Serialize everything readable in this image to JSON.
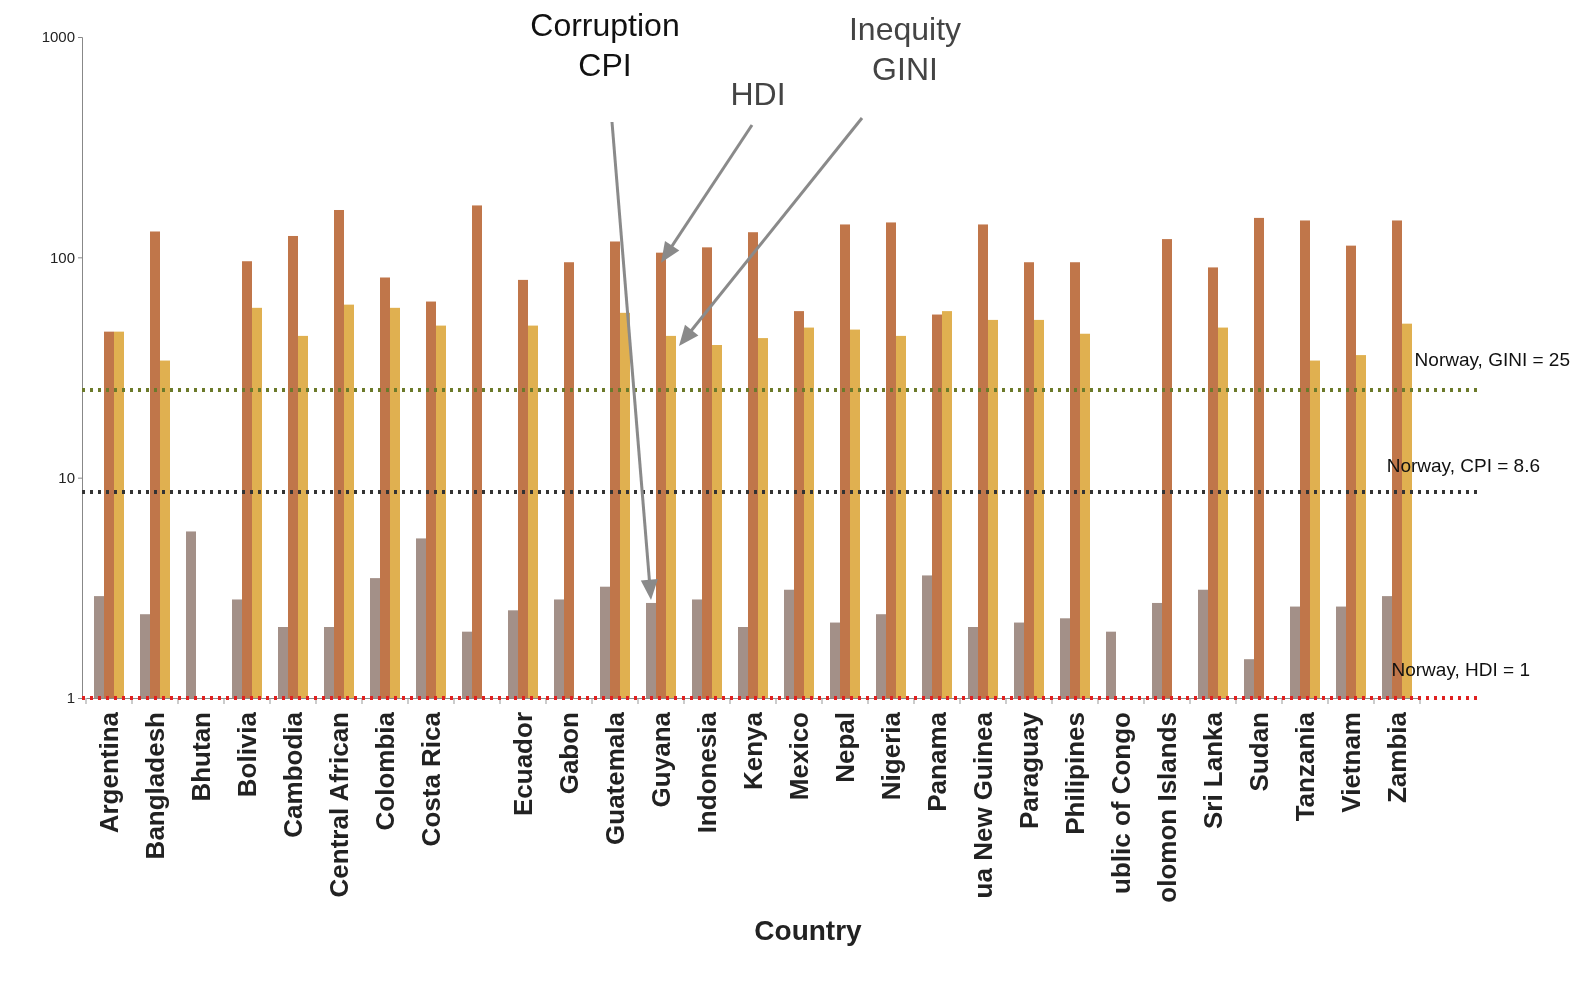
{
  "chart_data": {
    "type": "bar",
    "xlabel": "Country",
    "categories": [
      "Argentina",
      "Bangladesh",
      "Bhutan",
      "Bolivia",
      "Cambodia",
      "Central African",
      "Colombia",
      "Costa Rica",
      null,
      "Ecuador",
      "Gabon",
      "Guatemala",
      "Guyana",
      "Indonesia",
      "Kenya",
      "Mexico",
      "Nepal",
      "Nigeria",
      "Panama",
      "ua New Guinea",
      "Paraguay",
      "Philipines",
      "ublic of Congo",
      "olomon Islands",
      "Sri Lanka",
      "Sudan",
      "Tanzania",
      "Vietnam",
      "Zambia"
    ],
    "series": [
      {
        "name": "Corruption CPI",
        "color": "#a39088",
        "values": [
          2.9,
          2.4,
          5.7,
          2.8,
          2.1,
          2.1,
          3.5,
          5.3,
          2.0,
          2.5,
          2.8,
          3.2,
          2.7,
          2.8,
          2.1,
          3.1,
          2.2,
          2.4,
          3.6,
          2.1,
          2.2,
          2.3,
          2.0,
          2.7,
          3.1,
          1.5,
          2.6,
          2.6,
          2.9
        ]
      },
      {
        "name": "HDI",
        "color": "#c0764a",
        "values": [
          46,
          131,
          null,
          96,
          125,
          164,
          81,
          63,
          172,
          79,
          95,
          118,
          105,
          111,
          130,
          57,
          141,
          144,
          55,
          141,
          95,
          95,
          null,
          121,
          90,
          151,
          147,
          113,
          147
        ]
      },
      {
        "name": "Inequity GINI",
        "color": "#e0b050",
        "values": [
          46,
          34,
          null,
          59,
          44,
          61,
          59,
          49,
          null,
          49,
          null,
          56,
          44,
          40,
          43,
          48,
          47,
          44,
          57,
          52,
          52,
          45,
          null,
          null,
          48,
          null,
          34,
          36,
          50
        ]
      }
    ],
    "log": "y",
    "ylim": [
      1,
      1000
    ],
    "yticks": [
      1,
      10,
      100,
      1000
    ],
    "grid": false,
    "line_style": "dotted",
    "ref_lines": [
      {
        "axis": "y",
        "value": 25,
        "label": "Norway, GINI = 25",
        "color": "#6b7a2a"
      },
      {
        "axis": "y",
        "value": 8.6,
        "label": "Norway, CPI = 8.6",
        "color": "#333333"
      },
      {
        "axis": "y",
        "value": 1,
        "label": "Norway, HDI = 1",
        "color": "#e02020"
      }
    ]
  }
}
